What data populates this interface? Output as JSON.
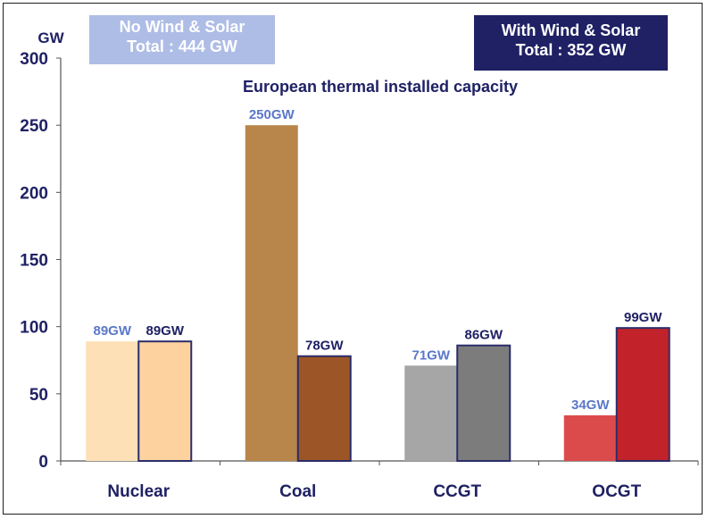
{
  "chart_data": {
    "type": "bar",
    "title": "European thermal installed capacity",
    "ylabel": "GW",
    "ylim": [
      0,
      300
    ],
    "yticks": [
      0,
      50,
      100,
      150,
      200,
      250,
      300
    ],
    "categories": [
      "Nuclear",
      "Coal",
      "CCGT",
      "OCGT"
    ],
    "series": [
      {
        "name": "No Wind & Solar",
        "total_label": "Total : 444 GW",
        "values": [
          89,
          250,
          71,
          34
        ],
        "labels": [
          "89GW",
          "250GW",
          "71GW",
          "34GW"
        ],
        "colors": [
          "#fde0b6",
          "#b8864a",
          "#a6a6a6",
          "#dc4b4b"
        ],
        "label_color": "#5a78c9"
      },
      {
        "name": "With Wind & Solar",
        "total_label": "Total : 352 GW",
        "values": [
          89,
          78,
          86,
          99
        ],
        "labels": [
          "89GW",
          "78GW",
          "86GW",
          "99GW"
        ],
        "colors": [
          "#fdd29e",
          "#9b5526",
          "#7c7c7c",
          "#c2232a"
        ],
        "label_color": "#1f2164"
      }
    ],
    "grid": false,
    "legend_position": "top"
  }
}
